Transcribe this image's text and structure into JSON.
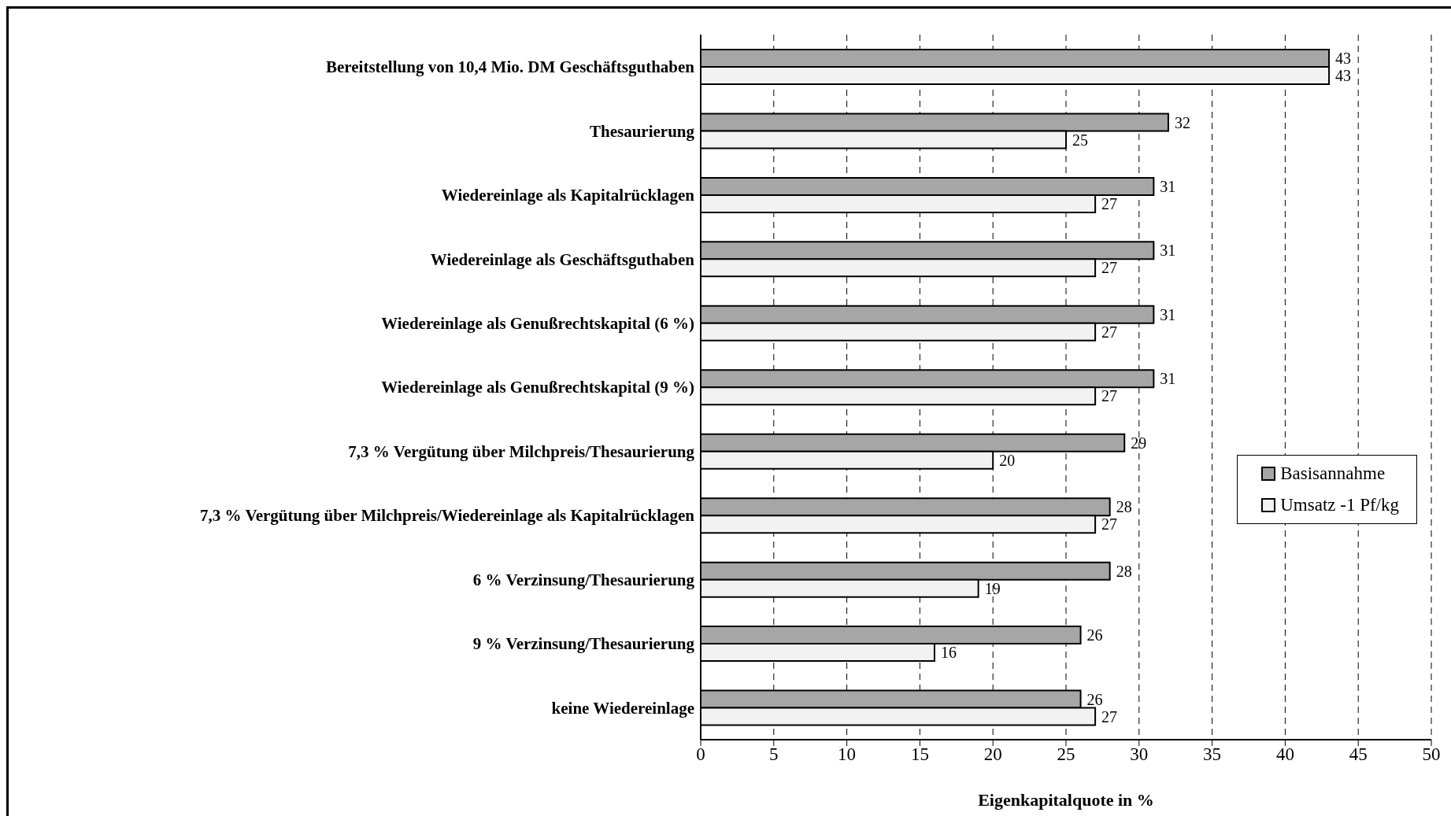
{
  "chart_data": {
    "type": "bar",
    "orientation": "horizontal",
    "xlabel": "Eigenkapitalquote in %",
    "categories": [
      "Bereitstellung von 10,4 Mio. DM Geschäftsguthaben",
      "Thesaurierung",
      "Wiedereinlage als Kapitalrücklagen",
      "Wiedereinlage als Geschäftsguthaben",
      "Wiedereinlage als Genußrechtskapital (6 %)",
      "Wiedereinlage als Genußrechtskapital (9 %)",
      "7,3 % Vergütung über Milchpreis/Thesaurierung",
      "7,3 % Vergütung über Milchpreis/Wiedereinlage als Kapitalrücklagen",
      "6 % Verzinsung/Thesaurierung",
      "9 % Verzinsung/Thesaurierung",
      "keine Wiedereinlage"
    ],
    "series": [
      {
        "name": "Basisannahme",
        "color": "#a6a6a6",
        "values": [
          43,
          32,
          31,
          31,
          31,
          31,
          29,
          28,
          28,
          26,
          26
        ]
      },
      {
        "name": "Umsatz -1 Pf/kg",
        "color": "#f2f2f2",
        "values": [
          43,
          25,
          27,
          27,
          27,
          27,
          20,
          27,
          19,
          16,
          27
        ]
      }
    ],
    "xlim": [
      0,
      50
    ],
    "xticks": [
      0,
      5,
      10,
      15,
      20,
      25,
      30,
      35,
      40,
      45,
      50
    ],
    "grid": "x",
    "legend": "right",
    "data_labels": true
  }
}
